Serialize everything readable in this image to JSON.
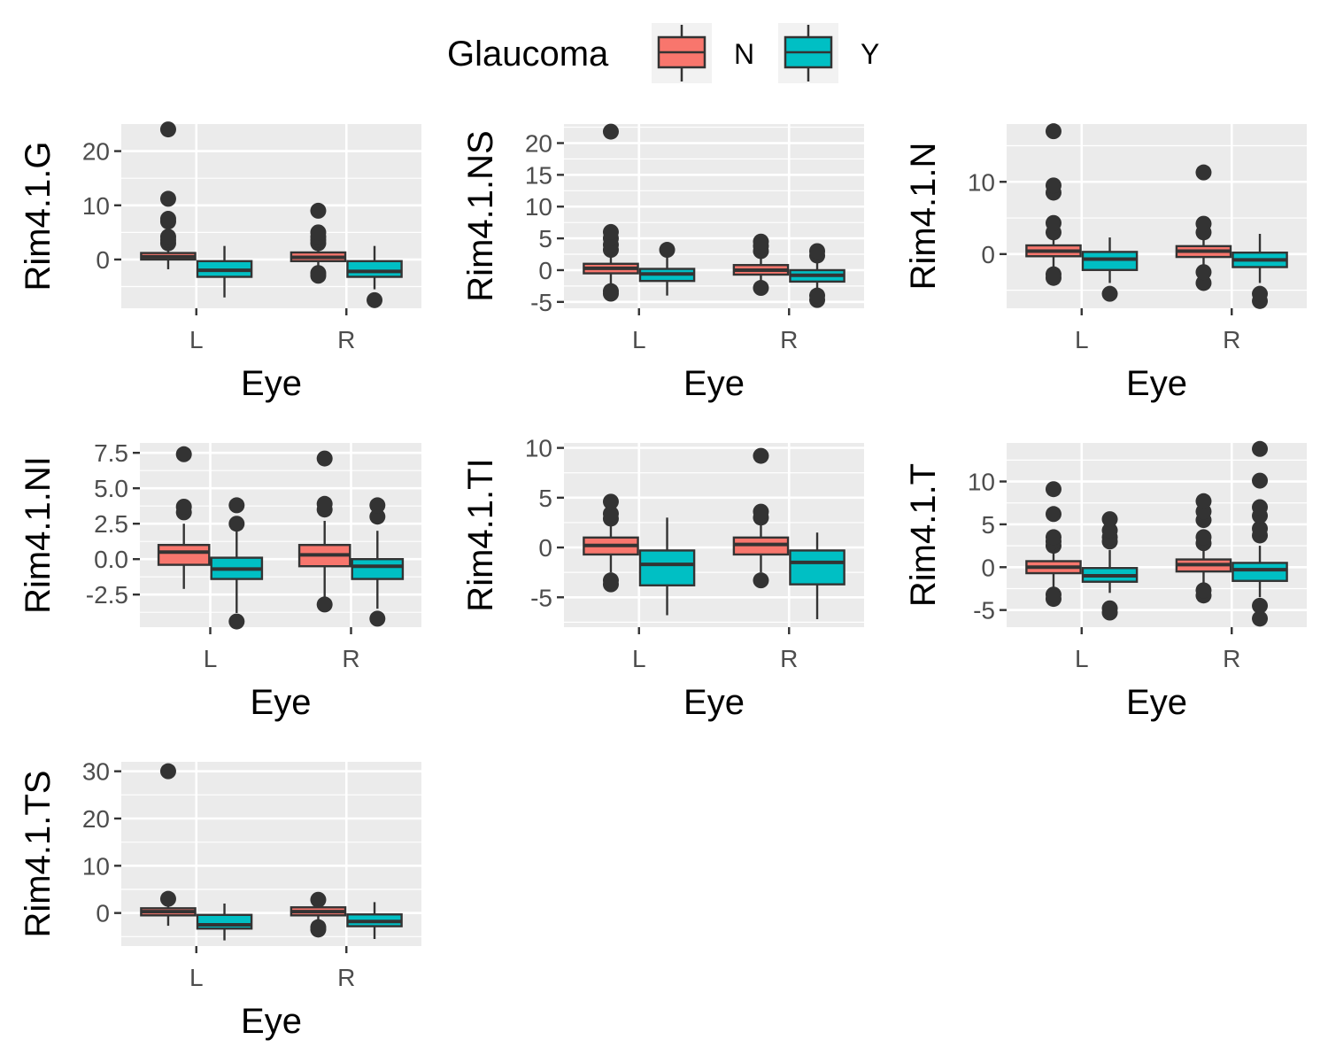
{
  "chart_data": {
    "type": "boxplot",
    "legend": {
      "title": "Glaucoma",
      "position": "top",
      "entries": [
        {
          "label": "N",
          "color": "#F8766D"
        },
        {
          "label": "Y",
          "color": "#00BFC4"
        }
      ]
    },
    "grid": true,
    "panel_background": "#EBEBEB",
    "panels": [
      {
        "ylabel": "Rim4.1.G",
        "xlabel": "Eye",
        "categories": [
          "L",
          "R"
        ],
        "ylim": [
          -9,
          25
        ],
        "yticks": [
          0,
          10,
          20
        ],
        "ytick_labels": [
          "0",
          "10",
          "20"
        ],
        "boxes": [
          {
            "eye": "L",
            "group": "N",
            "whislo": -1.8,
            "q1": 0.0,
            "median": 0.5,
            "q3": 1.2,
            "whishi": 2.5,
            "outliers": [
              3.0,
              3.6,
              4.2,
              7.0,
              7.5,
              11.2,
              24.0
            ]
          },
          {
            "eye": "L",
            "group": "Y",
            "whislo": -7.0,
            "q1": -3.2,
            "median": -2.0,
            "q3": -0.3,
            "whishi": 2.5,
            "outliers": []
          },
          {
            "eye": "R",
            "group": "N",
            "whislo": -1.5,
            "q1": -0.3,
            "median": 0.4,
            "q3": 1.3,
            "whishi": 2.5,
            "outliers": [
              -3.0,
              -2.5,
              3.0,
              3.6,
              4.2,
              5.0,
              9.0
            ]
          },
          {
            "eye": "R",
            "group": "Y",
            "whislo": -5.5,
            "q1": -3.2,
            "median": -2.2,
            "q3": -0.3,
            "whishi": 2.5,
            "outliers": [
              -7.5
            ]
          }
        ]
      },
      {
        "ylabel": "Rim4.1.NS",
        "xlabel": "Eye",
        "categories": [
          "L",
          "R"
        ],
        "ylim": [
          -6,
          23
        ],
        "yticks": [
          -5,
          0,
          5,
          10,
          15,
          20
        ],
        "ytick_labels": [
          "-5",
          "0",
          "5",
          "10",
          "15",
          "20"
        ],
        "boxes": [
          {
            "eye": "L",
            "group": "N",
            "whislo": -2.5,
            "q1": -0.5,
            "median": 0.3,
            "q3": 1.0,
            "whishi": 2.5,
            "outliers": [
              -3.7,
              -3.3,
              3.2,
              4.0,
              5.0,
              6.0,
              21.8
            ]
          },
          {
            "eye": "L",
            "group": "Y",
            "whislo": -4.0,
            "q1": -1.7,
            "median": -0.6,
            "q3": 0.2,
            "whishi": 2.5,
            "outliers": [
              3.2
            ]
          },
          {
            "eye": "R",
            "group": "N",
            "whislo": -2.5,
            "q1": -0.7,
            "median": 0.0,
            "q3": 0.8,
            "whishi": 2.5,
            "outliers": [
              -2.8,
              3.0,
              3.8,
              4.5
            ]
          },
          {
            "eye": "R",
            "group": "Y",
            "whislo": -3.5,
            "q1": -1.8,
            "median": -0.8,
            "q3": 0.0,
            "whishi": 2.0,
            "outliers": [
              -4.7,
              -4.0,
              2.3,
              3.0
            ]
          }
        ]
      },
      {
        "ylabel": "Rim4.1.N",
        "xlabel": "Eye",
        "categories": [
          "L",
          "R"
        ],
        "ylim": [
          -7.5,
          18
        ],
        "yticks": [
          0,
          10
        ],
        "ytick_labels": [
          "0",
          "10"
        ],
        "boxes": [
          {
            "eye": "L",
            "group": "N",
            "whislo": -2.0,
            "q1": -0.3,
            "median": 0.4,
            "q3": 1.2,
            "whishi": 2.5,
            "outliers": [
              -3.3,
              -2.8,
              3.0,
              4.3,
              8.5,
              9.5,
              17.0
            ]
          },
          {
            "eye": "L",
            "group": "Y",
            "whislo": -4.0,
            "q1": -2.2,
            "median": -0.7,
            "q3": 0.3,
            "whishi": 2.3,
            "outliers": [
              -5.5
            ]
          },
          {
            "eye": "R",
            "group": "N",
            "whislo": -2.0,
            "q1": -0.4,
            "median": 0.4,
            "q3": 1.1,
            "whishi": 2.5,
            "outliers": [
              -4.0,
              -2.5,
              3.0,
              4.2,
              11.3
            ]
          },
          {
            "eye": "R",
            "group": "Y",
            "whislo": -4.0,
            "q1": -1.8,
            "median": -0.8,
            "q3": 0.2,
            "whishi": 2.8,
            "outliers": [
              -6.5,
              -5.5
            ]
          }
        ]
      },
      {
        "ylabel": "Rim4.1.NI",
        "xlabel": "Eye",
        "categories": [
          "L",
          "R"
        ],
        "ylim": [
          -4.8,
          8.2
        ],
        "yticks": [
          -2.5,
          0.0,
          2.5,
          5.0,
          7.5
        ],
        "ytick_labels": [
          "-2.5",
          "0.0",
          "2.5",
          "5.0",
          "7.5"
        ],
        "boxes": [
          {
            "eye": "L",
            "group": "N",
            "whislo": -2.1,
            "q1": -0.4,
            "median": 0.5,
            "q3": 1.0,
            "whishi": 2.5,
            "outliers": [
              3.3,
              3.7,
              7.4
            ]
          },
          {
            "eye": "L",
            "group": "Y",
            "whislo": -3.8,
            "q1": -1.4,
            "median": -0.7,
            "q3": 0.1,
            "whishi": 2.0,
            "outliers": [
              -4.4,
              2.5,
              3.8
            ]
          },
          {
            "eye": "R",
            "group": "N",
            "whislo": -2.8,
            "q1": -0.5,
            "median": 0.3,
            "q3": 1.0,
            "whishi": 2.7,
            "outliers": [
              -3.2,
              3.5,
              3.9,
              7.1
            ]
          },
          {
            "eye": "R",
            "group": "Y",
            "whislo": -3.5,
            "q1": -1.4,
            "median": -0.5,
            "q3": 0.0,
            "whishi": 2.0,
            "outliers": [
              -4.2,
              3.0,
              3.8
            ]
          }
        ]
      },
      {
        "ylabel": "Rim4.1.TI",
        "xlabel": "Eye",
        "categories": [
          "L",
          "R"
        ],
        "ylim": [
          -8,
          10.5
        ],
        "yticks": [
          -5,
          0,
          5,
          10
        ],
        "ytick_labels": [
          "-5",
          "0",
          "5",
          "10"
        ],
        "boxes": [
          {
            "eye": "L",
            "group": "N",
            "whislo": -2.5,
            "q1": -0.7,
            "median": 0.2,
            "q3": 1.0,
            "whishi": 2.5,
            "outliers": [
              -3.7,
              -3.3,
              2.9,
              3.4,
              4.6
            ]
          },
          {
            "eye": "L",
            "group": "Y",
            "whislo": -6.8,
            "q1": -3.8,
            "median": -1.7,
            "q3": -0.3,
            "whishi": 3.0,
            "outliers": []
          },
          {
            "eye": "R",
            "group": "N",
            "whislo": -2.5,
            "q1": -0.7,
            "median": 0.3,
            "q3": 1.0,
            "whishi": 2.5,
            "outliers": [
              -3.3,
              3.0,
              3.6,
              9.2
            ]
          },
          {
            "eye": "R",
            "group": "Y",
            "whislo": -7.2,
            "q1": -3.7,
            "median": -1.5,
            "q3": -0.3,
            "whishi": 1.5,
            "outliers": []
          }
        ]
      },
      {
        "ylabel": "Rim4.1.T",
        "xlabel": "Eye",
        "categories": [
          "L",
          "R"
        ],
        "ylim": [
          -7,
          14.5
        ],
        "yticks": [
          -5,
          0,
          5,
          10
        ],
        "ytick_labels": [
          "-5",
          "0",
          "5",
          "10"
        ],
        "boxes": [
          {
            "eye": "L",
            "group": "N",
            "whislo": -2.5,
            "q1": -0.7,
            "median": 0.0,
            "q3": 0.7,
            "whishi": 2.2,
            "outliers": [
              -3.7,
              -3.2,
              2.5,
              3.0,
              3.5,
              6.2,
              9.1
            ]
          },
          {
            "eye": "L",
            "group": "Y",
            "whislo": -3.0,
            "q1": -1.7,
            "median": -1.0,
            "q3": -0.1,
            "whishi": 2.0,
            "outliers": [
              -5.3,
              -4.8,
              3.0,
              3.5,
              4.3,
              5.6
            ]
          },
          {
            "eye": "R",
            "group": "N",
            "whislo": -2.2,
            "q1": -0.5,
            "median": 0.3,
            "q3": 0.9,
            "whishi": 2.3,
            "outliers": [
              -3.3,
              -2.7,
              2.8,
              3.5,
              5.5,
              6.5,
              7.7
            ]
          },
          {
            "eye": "R",
            "group": "Y",
            "whislo": -3.5,
            "q1": -1.6,
            "median": -0.3,
            "q3": 0.5,
            "whishi": 2.5,
            "outliers": [
              -6.0,
              -4.5,
              3.7,
              4.5,
              6.0,
              7.0,
              10.1,
              13.8
            ]
          }
        ]
      },
      {
        "ylabel": "Rim4.1.TS",
        "xlabel": "Eye",
        "categories": [
          "L",
          "R"
        ],
        "ylim": [
          -7,
          32
        ],
        "yticks": [
          0,
          10,
          20,
          30
        ],
        "ytick_labels": [
          "0",
          "10",
          "20",
          "30"
        ],
        "boxes": [
          {
            "eye": "L",
            "group": "N",
            "whislo": -2.7,
            "q1": -0.5,
            "median": 0.3,
            "q3": 1.0,
            "whishi": 2.5,
            "outliers": [
              3.0,
              30.0
            ]
          },
          {
            "eye": "L",
            "group": "Y",
            "whislo": -5.8,
            "q1": -3.3,
            "median": -2.5,
            "q3": -0.4,
            "whishi": 2.0,
            "outliers": []
          },
          {
            "eye": "R",
            "group": "N",
            "whislo": -2.2,
            "q1": -0.5,
            "median": 0.3,
            "q3": 1.2,
            "whishi": 2.5,
            "outliers": [
              -3.5,
              -3.0,
              2.8
            ]
          },
          {
            "eye": "R",
            "group": "Y",
            "whislo": -5.5,
            "q1": -2.8,
            "median": -1.8,
            "q3": -0.3,
            "whishi": 2.3,
            "outliers": []
          }
        ]
      }
    ]
  }
}
